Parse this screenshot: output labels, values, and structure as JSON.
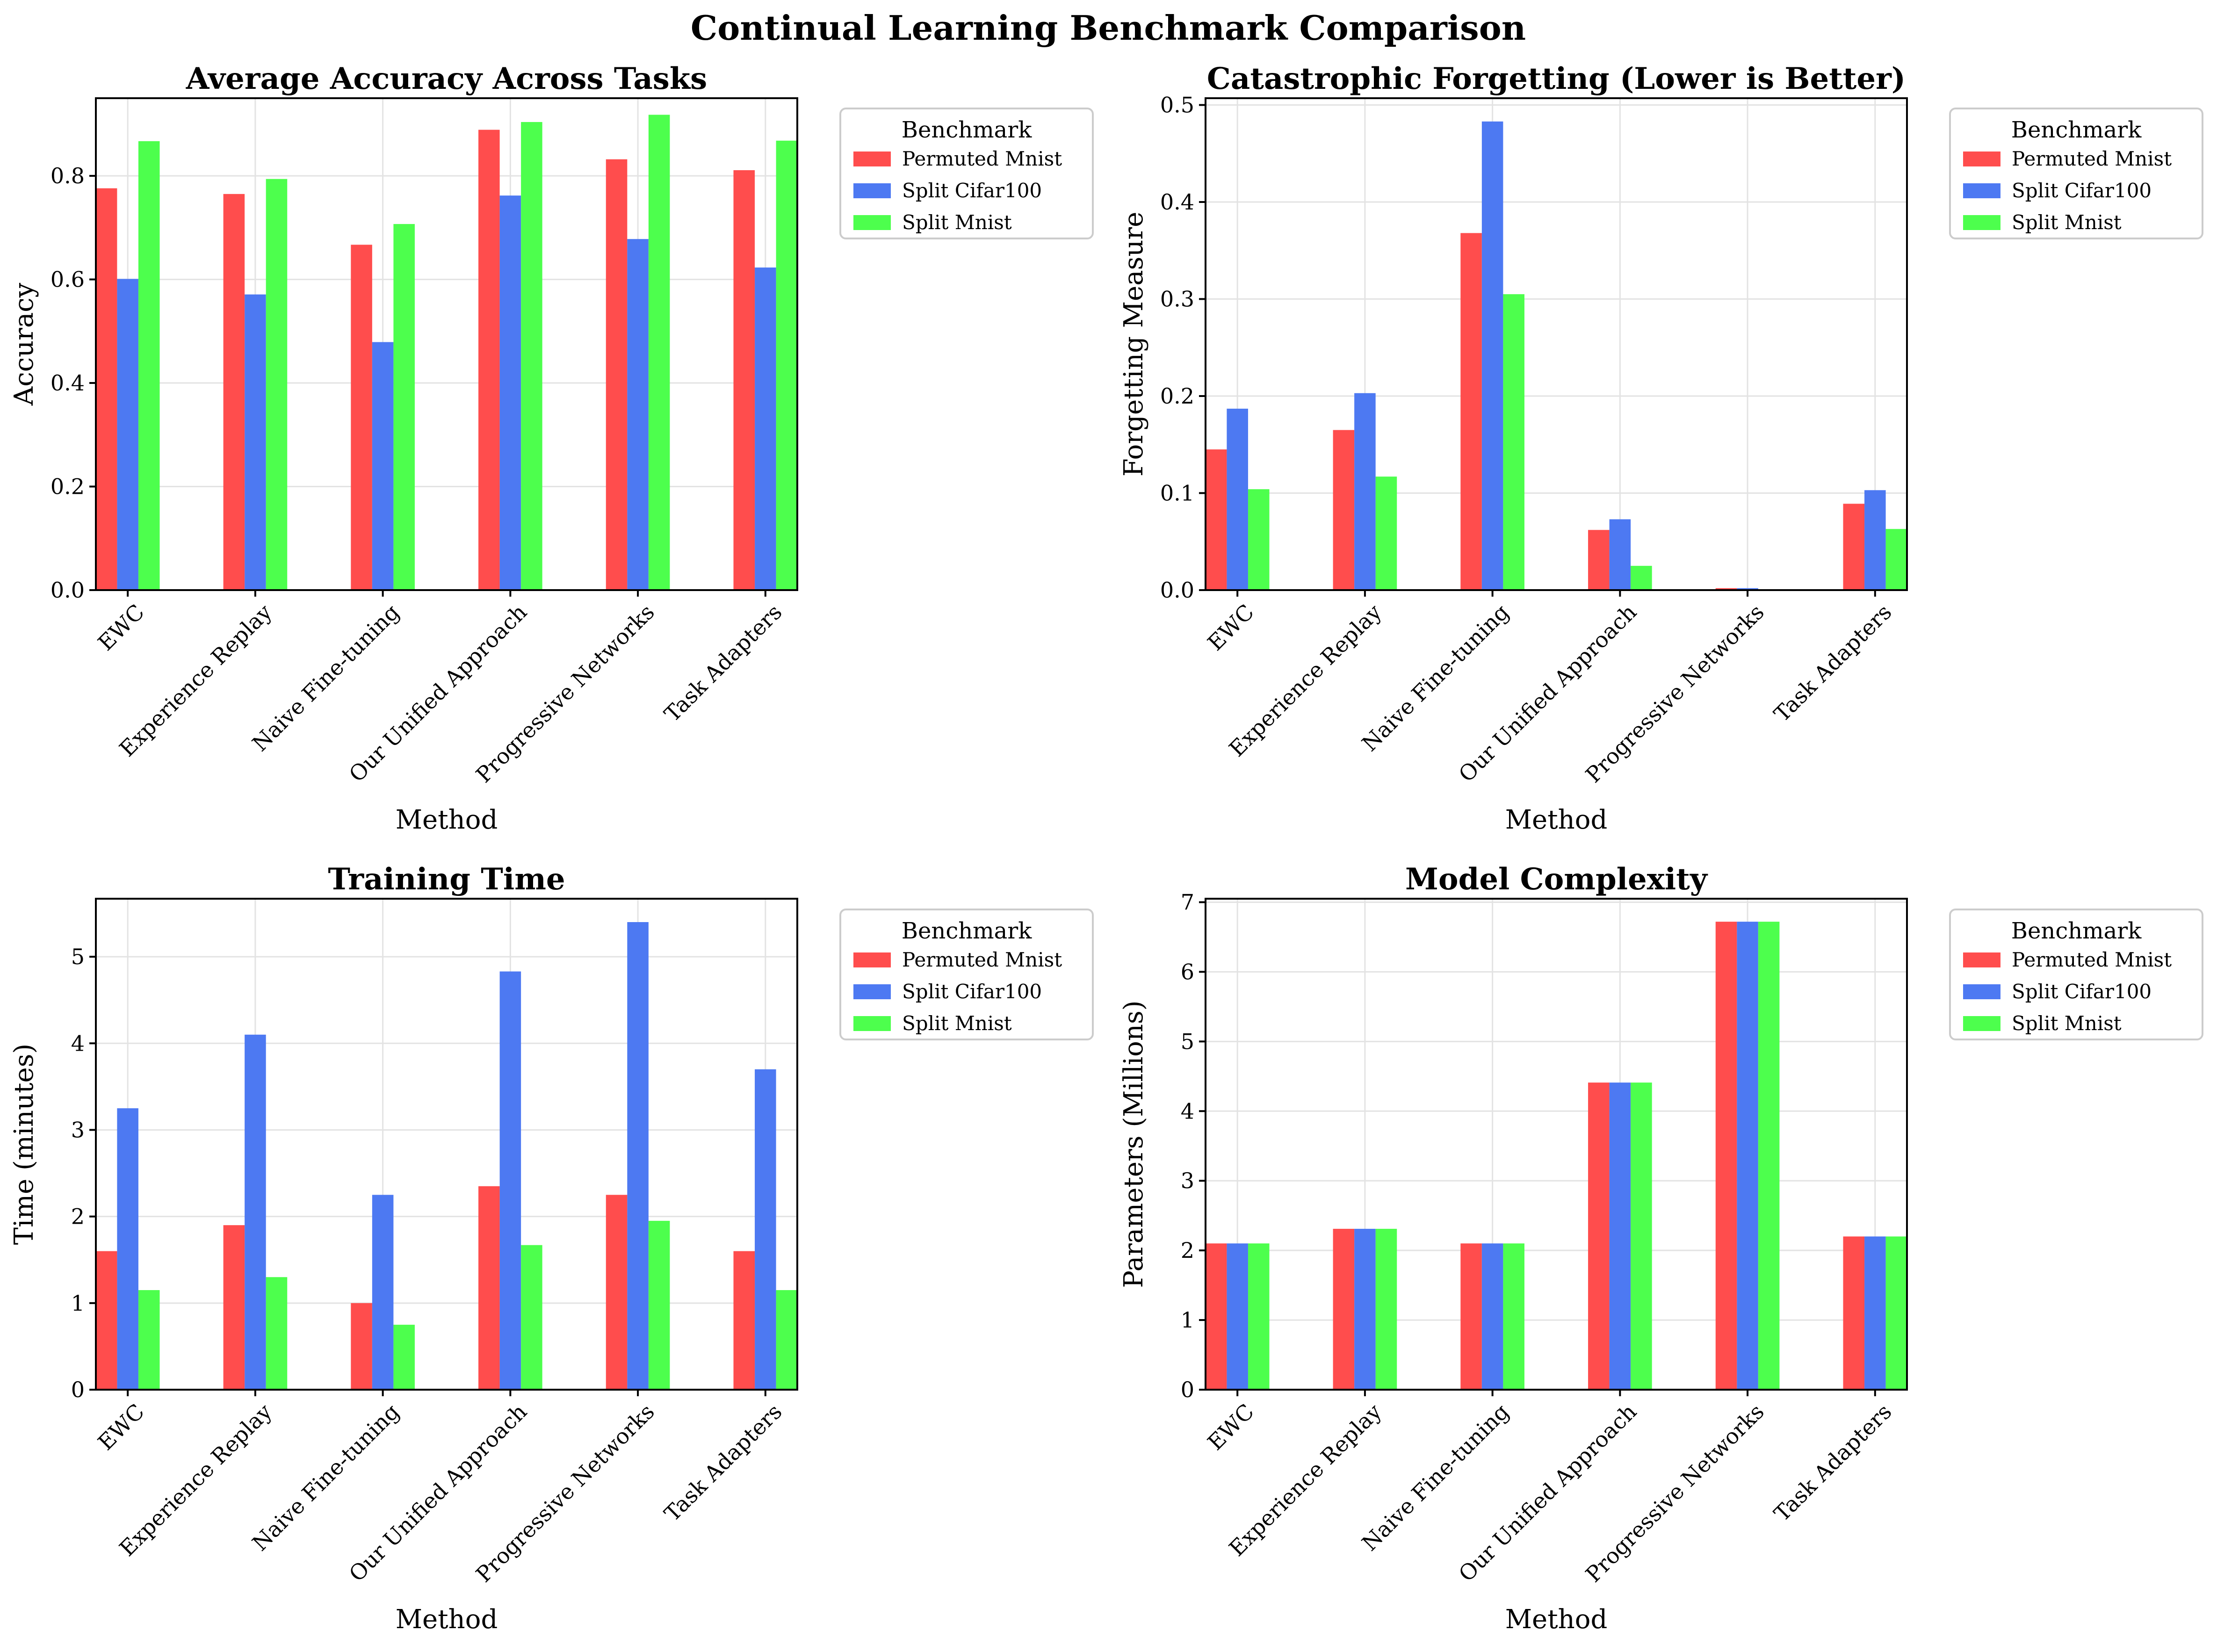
{
  "figure": {
    "title": "Continual Learning Benchmark Comparison"
  },
  "colors": {
    "series": [
      "#ff4d4d",
      "#4d79f2",
      "#4dff4d"
    ]
  },
  "legend": {
    "title": "Benchmark",
    "placement": "outside-right-top"
  },
  "chart_data": [
    {
      "type": "bar",
      "title": "Average Accuracy Across Tasks",
      "xlabel": "Method",
      "ylabel": "Accuracy",
      "categories": [
        "EWC",
        "Experience Replay",
        "Naive Fine-tuning",
        "Our Unified Approach",
        "Progressive Networks",
        "Task Adapters"
      ],
      "series": [
        {
          "name": "Permuted Mnist",
          "values": [
            0.776,
            0.765,
            0.667,
            0.889,
            0.832,
            0.811
          ]
        },
        {
          "name": "Split Cifar100",
          "values": [
            0.601,
            0.571,
            0.479,
            0.762,
            0.678,
            0.623
          ]
        },
        {
          "name": "Split Mnist",
          "values": [
            0.867,
            0.794,
            0.707,
            0.904,
            0.918,
            0.868
          ]
        }
      ],
      "ylim": [
        0,
        0.95
      ],
      "yticks": [
        0.0,
        0.2,
        0.4,
        0.6,
        0.8
      ],
      "ytick_labels": [
        "0.0",
        "0.2",
        "0.4",
        "0.6",
        "0.8"
      ],
      "grid": true
    },
    {
      "type": "bar",
      "title": "Catastrophic Forgetting (Lower is Better)",
      "xlabel": "Method",
      "ylabel": "Forgetting Measure",
      "categories": [
        "EWC",
        "Experience Replay",
        "Naive Fine-tuning",
        "Our Unified Approach",
        "Progressive Networks",
        "Task Adapters"
      ],
      "series": [
        {
          "name": "Permuted Mnist",
          "values": [
            0.145,
            0.165,
            0.368,
            0.062,
            0.002,
            0.089
          ]
        },
        {
          "name": "Split Cifar100",
          "values": [
            0.187,
            0.203,
            0.483,
            0.073,
            0.002,
            0.103
          ]
        },
        {
          "name": "Split Mnist",
          "values": [
            0.104,
            0.117,
            0.305,
            0.025,
            0.0,
            0.063
          ]
        }
      ],
      "ylim": [
        0,
        0.507
      ],
      "yticks": [
        0.0,
        0.1,
        0.2,
        0.3,
        0.4,
        0.5
      ],
      "ytick_labels": [
        "0.0",
        "0.1",
        "0.2",
        "0.3",
        "0.4",
        "0.5"
      ],
      "grid": true
    },
    {
      "type": "bar",
      "title": "Training Time",
      "xlabel": "Method",
      "ylabel": "Time (minutes)",
      "categories": [
        "EWC",
        "Experience Replay",
        "Naive Fine-tuning",
        "Our Unified Approach",
        "Progressive Networks",
        "Task Adapters"
      ],
      "series": [
        {
          "name": "Permuted Mnist",
          "values": [
            1.6,
            1.9,
            1.0,
            2.35,
            2.25,
            1.6
          ]
        },
        {
          "name": "Split Cifar100",
          "values": [
            3.25,
            4.1,
            2.25,
            4.83,
            5.4,
            3.7
          ]
        },
        {
          "name": "Split Mnist",
          "values": [
            1.15,
            1.3,
            0.75,
            1.67,
            1.95,
            1.15
          ]
        }
      ],
      "ylim": [
        0,
        5.67
      ],
      "yticks": [
        0,
        1,
        2,
        3,
        4,
        5
      ],
      "ytick_labels": [
        "0",
        "1",
        "2",
        "3",
        "4",
        "5"
      ],
      "grid": true
    },
    {
      "type": "bar",
      "title": "Model Complexity",
      "xlabel": "Method",
      "ylabel": "Parameters (Millions)",
      "categories": [
        "EWC",
        "Experience Replay",
        "Naive Fine-tuning",
        "Our Unified Approach",
        "Progressive Networks",
        "Task Adapters"
      ],
      "series": [
        {
          "name": "Permuted Mnist",
          "values": [
            2.1,
            2.31,
            2.1,
            4.41,
            6.72,
            2.2
          ]
        },
        {
          "name": "Split Cifar100",
          "values": [
            2.1,
            2.31,
            2.1,
            4.41,
            6.72,
            2.2
          ]
        },
        {
          "name": "Split Mnist",
          "values": [
            2.1,
            2.31,
            2.1,
            4.41,
            6.72,
            2.2
          ]
        }
      ],
      "ylim": [
        0,
        7.05
      ],
      "yticks": [
        0,
        1,
        2,
        3,
        4,
        5,
        6,
        7
      ],
      "ytick_labels": [
        "0",
        "1",
        "2",
        "3",
        "4",
        "5",
        "6",
        "7"
      ],
      "grid": true
    }
  ]
}
